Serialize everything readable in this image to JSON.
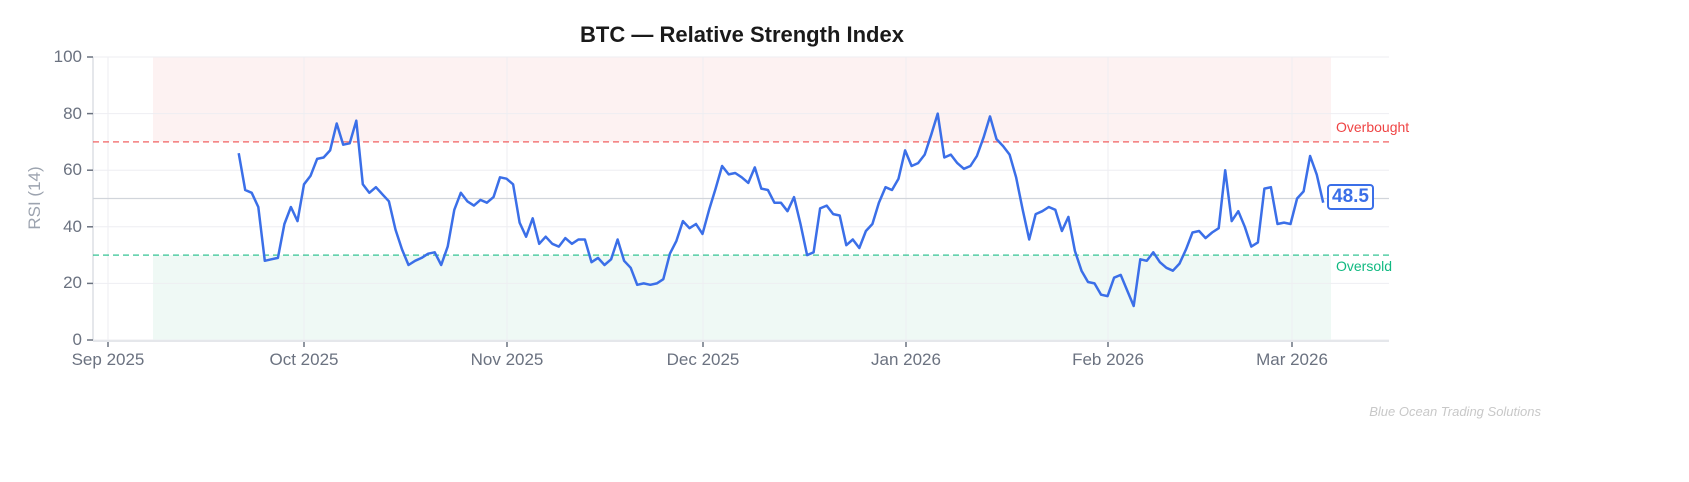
{
  "chart_data": {
    "type": "line",
    "title": "BTC — Relative Strength Index",
    "xlabel": "",
    "ylabel": "RSI (14)",
    "ylim": [
      0,
      100
    ],
    "yticks": [
      0,
      20,
      40,
      60,
      80,
      100
    ],
    "xticks": [
      "Sep 2025",
      "Oct 2025",
      "Nov 2025",
      "Dec 2025",
      "Jan 2026",
      "Feb 2026",
      "Mar 2026"
    ],
    "grid": true,
    "legend": "none",
    "reference_lines": [
      {
        "name": "Overbought",
        "value": 70,
        "color": "#ef4444",
        "style": "dashed"
      },
      {
        "name": "Oversold",
        "value": 30,
        "color": "#10b981",
        "style": "dashed"
      },
      {
        "name": "Midline",
        "value": 50,
        "color": "#d1d5db",
        "style": "solid"
      }
    ],
    "zones": [
      {
        "name": "Overbought zone",
        "from": 70,
        "to": 100,
        "color": "#fdf2f2"
      },
      {
        "name": "Oversold zone",
        "from": 0,
        "to": 30,
        "color": "#eff9f5"
      }
    ],
    "series": [
      {
        "name": "RSI (14)",
        "color": "#3b6fe8",
        "start_date": "2025-09-21",
        "end_date": "2026-03-06",
        "values": [
          66,
          53,
          52,
          47,
          28,
          28.5,
          29,
          41,
          47,
          42,
          55,
          58,
          64,
          64.5,
          67,
          76.5,
          69,
          69.5,
          77.5,
          55,
          52,
          54,
          51.5,
          49,
          39,
          32,
          26.5,
          28,
          29,
          30.5,
          31,
          26.5,
          33,
          46,
          52,
          49,
          47.5,
          49.5,
          48.5,
          50.5,
          57.5,
          57,
          55,
          41.5,
          36.5,
          43,
          34,
          36.5,
          34,
          33,
          36,
          34,
          35.5,
          35.5,
          27.5,
          29,
          26.5,
          28.5,
          35.5,
          28,
          25.5,
          19.5,
          20,
          19.5,
          20,
          21.5,
          30.5,
          35,
          42,
          39.5,
          41,
          37.5,
          46,
          53.5,
          61.5,
          58.5,
          59,
          57.5,
          55.5,
          61,
          53.5,
          53,
          48.5,
          48.5,
          45.5,
          50.5,
          41,
          30,
          31,
          46.5,
          47.5,
          44.5,
          44,
          33.5,
          35.5,
          32.5,
          38.5,
          41,
          48.5,
          54,
          53,
          57,
          67,
          61.5,
          62.5,
          65.5,
          72.5,
          80,
          64.5,
          65.5,
          62.5,
          60.5,
          61.5,
          65,
          71.5,
          79,
          71,
          68.5,
          65.5,
          57.5,
          46,
          35.5,
          44.5,
          45.5,
          47,
          46,
          38.5,
          43.5,
          31.5,
          24.5,
          20.5,
          20,
          16,
          15.5,
          22,
          23,
          17.5,
          12,
          28.5,
          28,
          31,
          27.5,
          25.5,
          24.5,
          27,
          32,
          38,
          38.5,
          36,
          38,
          39.5,
          60,
          42,
          45.5,
          40,
          33,
          34.5,
          53.5,
          54,
          41,
          41.5,
          41,
          50,
          52.5,
          65,
          58.5,
          48.5
        ]
      }
    ],
    "last_value": "48.5"
  },
  "annotations": {
    "overbought_label": "Overbought",
    "oversold_label": "Oversold",
    "last_value_badge": "48.5"
  },
  "footer": {
    "watermark": "Blue Ocean Trading Solutions"
  }
}
